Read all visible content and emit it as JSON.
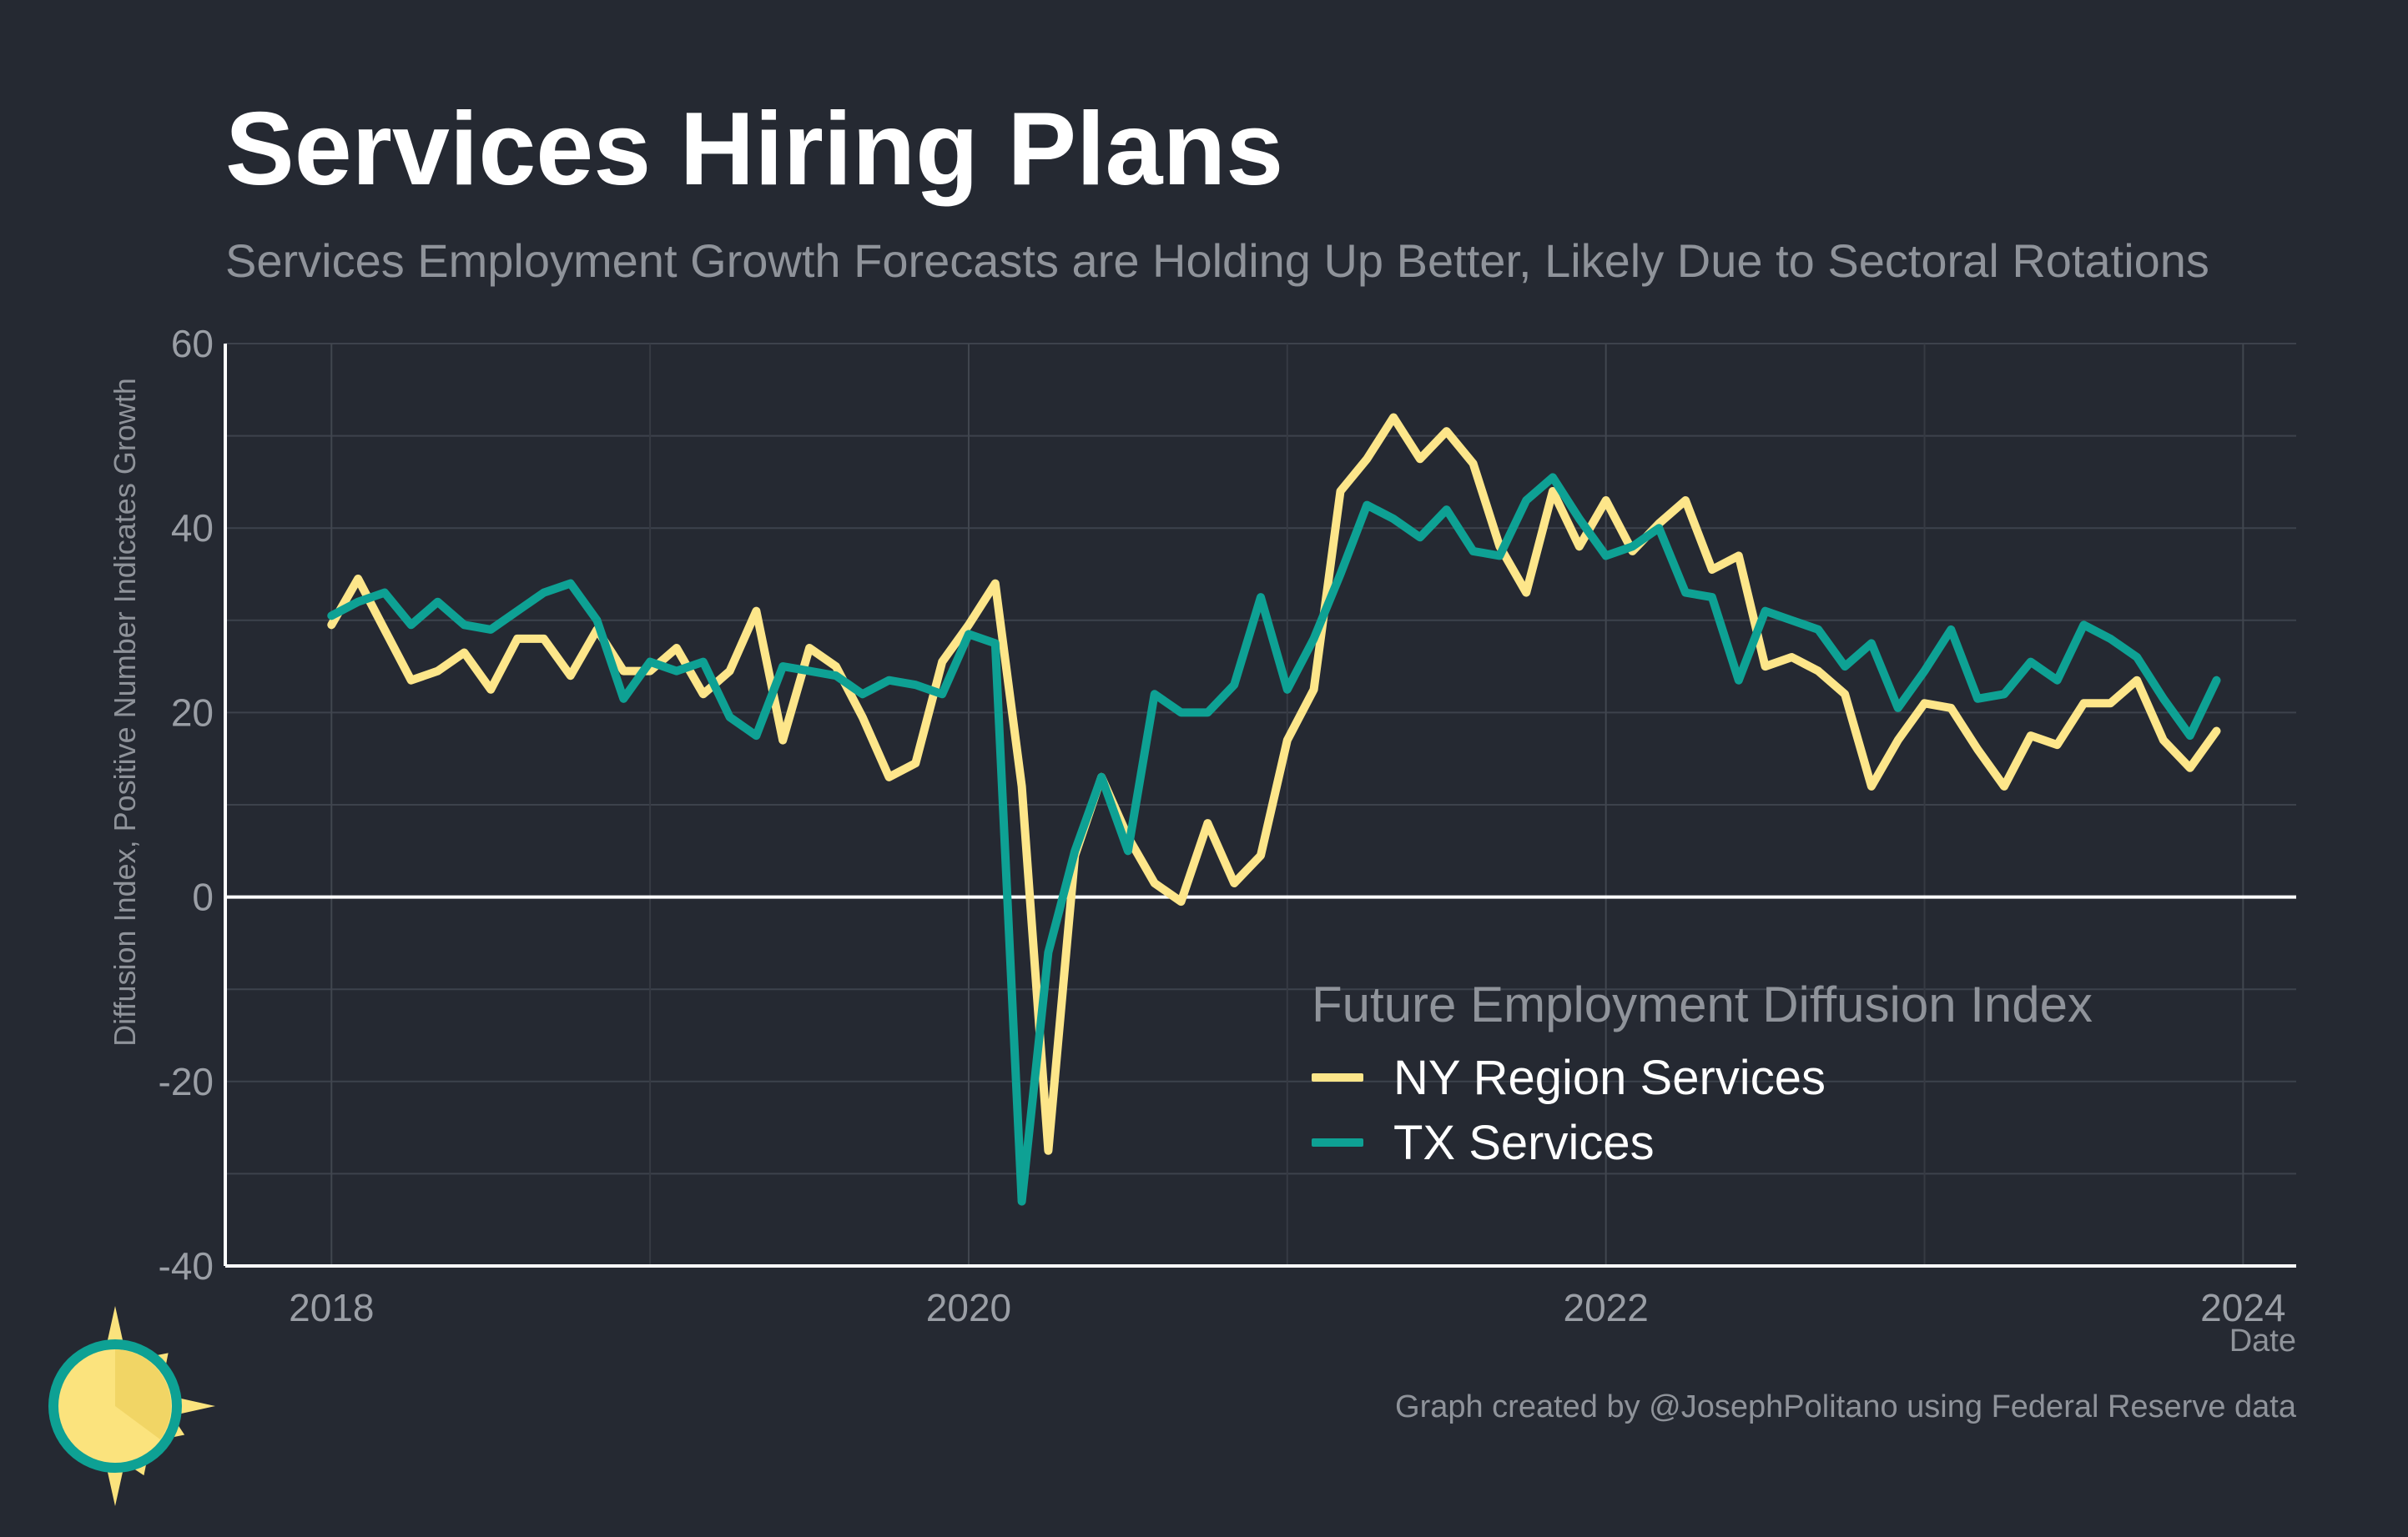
{
  "header": {
    "title": "Services Hiring Plans",
    "subtitle": "Services Employment Growth Forecasts are Holding Up Better, Likely Due to Sectoral Rotations"
  },
  "footer": {
    "credit": "Graph created by @JosephPolitano using Federal Reserve data"
  },
  "chart_data": {
    "type": "line",
    "title": "Services Hiring Plans",
    "subtitle": "Services Employment Growth Forecasts are Holding Up Better, Likely Due to Sectoral Rotations",
    "xlabel": "Date",
    "ylabel": "Diffusion Index, Positive Number Indicates Growth",
    "x_start": "2018-01",
    "x_frequency": "monthly",
    "xlim": [
      "2017-09",
      "2024-03"
    ],
    "ylim": [
      -40,
      60
    ],
    "x_ticks": [
      "2018",
      "2020",
      "2022",
      "2024"
    ],
    "y_ticks": [
      -40,
      -20,
      0,
      20,
      40,
      60
    ],
    "grid": true,
    "zero_line": true,
    "legend_title": "Future Employment Diffusion Index",
    "legend_position": "bottom-center",
    "series": [
      {
        "name": "NY Region Services",
        "color": "#fde68a",
        "values": [
          29.5,
          34.5,
          29,
          23.5,
          24.5,
          26.5,
          22.5,
          28,
          28,
          24,
          29,
          24.5,
          24.5,
          27,
          22,
          24.5,
          31,
          17,
          27,
          25,
          19.5,
          13,
          14.5,
          25.5,
          29.5,
          34,
          12,
          -27.5,
          4.5,
          13,
          6.5,
          1.5,
          -0.5,
          8,
          1.5,
          4.5,
          17,
          22.5,
          44,
          47.5,
          52,
          47.5,
          50.5,
          47,
          38,
          33,
          44,
          38,
          43,
          37.5,
          40.5,
          43,
          35.5,
          37,
          25,
          26,
          24.5,
          22,
          12,
          17,
          21,
          20.5,
          16,
          12,
          17.5,
          16.5,
          21,
          21,
          23.5,
          17,
          14,
          18
        ]
      },
      {
        "name": "TX Services",
        "color": "#0ea194",
        "values": [
          30.5,
          32,
          33,
          29.5,
          32,
          29.5,
          29,
          31,
          33,
          34,
          30,
          21.5,
          25.5,
          24.5,
          25.5,
          19.5,
          17.5,
          25,
          24.5,
          24,
          22,
          23.5,
          23,
          22,
          28.5,
          27.5,
          -33,
          -6,
          5,
          13,
          5,
          22,
          20,
          20,
          23,
          32.5,
          22.5,
          28,
          35,
          42.5,
          41,
          39,
          42,
          37.5,
          37,
          43,
          45.5,
          41,
          37,
          38,
          40,
          33,
          32.5,
          23.5,
          31,
          30,
          29,
          25,
          27.5,
          20.5,
          24.5,
          29,
          21.5,
          22,
          25.5,
          23.5,
          29.5,
          28,
          26,
          21.5,
          17.5,
          23.5
        ]
      }
    ]
  },
  "logo": {
    "icon": "sun-clock-icon",
    "colors": {
      "sun": "#fbe37d",
      "ring": "#0ea194",
      "rays": "#fbe37d"
    }
  }
}
